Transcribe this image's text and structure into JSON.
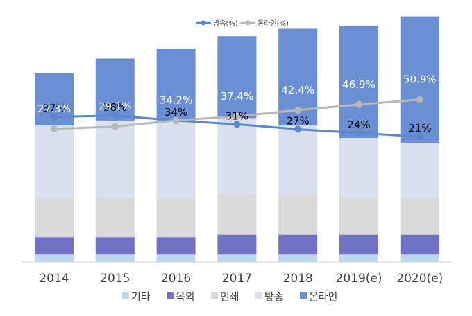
{
  "chart_data": {
    "type": "bar",
    "stacked": true,
    "categories": [
      "2014",
      "2015",
      "2016",
      "2017",
      "2018",
      "2019(e)",
      "2020(e)"
    ],
    "series": [
      {
        "name": "기타",
        "color": "#bdd7ee",
        "values": [
          3,
          3,
          3,
          3,
          3,
          3,
          3
        ]
      },
      {
        "name": "옥외",
        "color": "#7272c4",
        "values": [
          7,
          7,
          7,
          8,
          8,
          8,
          8
        ]
      },
      {
        "name": "인쇄",
        "color": "#d9d9d9",
        "values": [
          16,
          16,
          16,
          16,
          16,
          15,
          15
        ]
      },
      {
        "name": "방송",
        "color": "#dadff0",
        "values": [
          29,
          31,
          31,
          31,
          28,
          24,
          22
        ]
      },
      {
        "name": "온라인",
        "color": "#6a8fd4",
        "values": [
          21,
          25,
          29,
          33,
          39,
          45,
          51
        ]
      }
    ],
    "line_series": [
      {
        "name": "방송(%)",
        "color": "#5b87cc",
        "values": [
          37,
          38,
          34,
          31,
          27,
          24,
          21
        ],
        "labels": [
          "37%",
          "38%",
          "34%",
          "31%",
          "27%",
          "24%",
          "21%"
        ]
      },
      {
        "name": "온라인(%)",
        "color": "#b8b8b8",
        "values": [
          27.3,
          29.1,
          34.2,
          37.4,
          42.4,
          46.9,
          50.9
        ],
        "labels": [
          "27.3%",
          "29.1%",
          "34.2%",
          "37.4%",
          "42.4%",
          "46.9%",
          "50.9%"
        ]
      }
    ],
    "ylim": [
      0,
      100
    ],
    "line_ylim": [
      -80,
      120
    ],
    "legend_top": [
      "방송(%)",
      "온라인(%)"
    ],
    "legend_bottom": [
      "기타",
      "옥외",
      "인쇄",
      "방송",
      "온라인"
    ],
    "legend": "top and bottom",
    "grid": false
  }
}
